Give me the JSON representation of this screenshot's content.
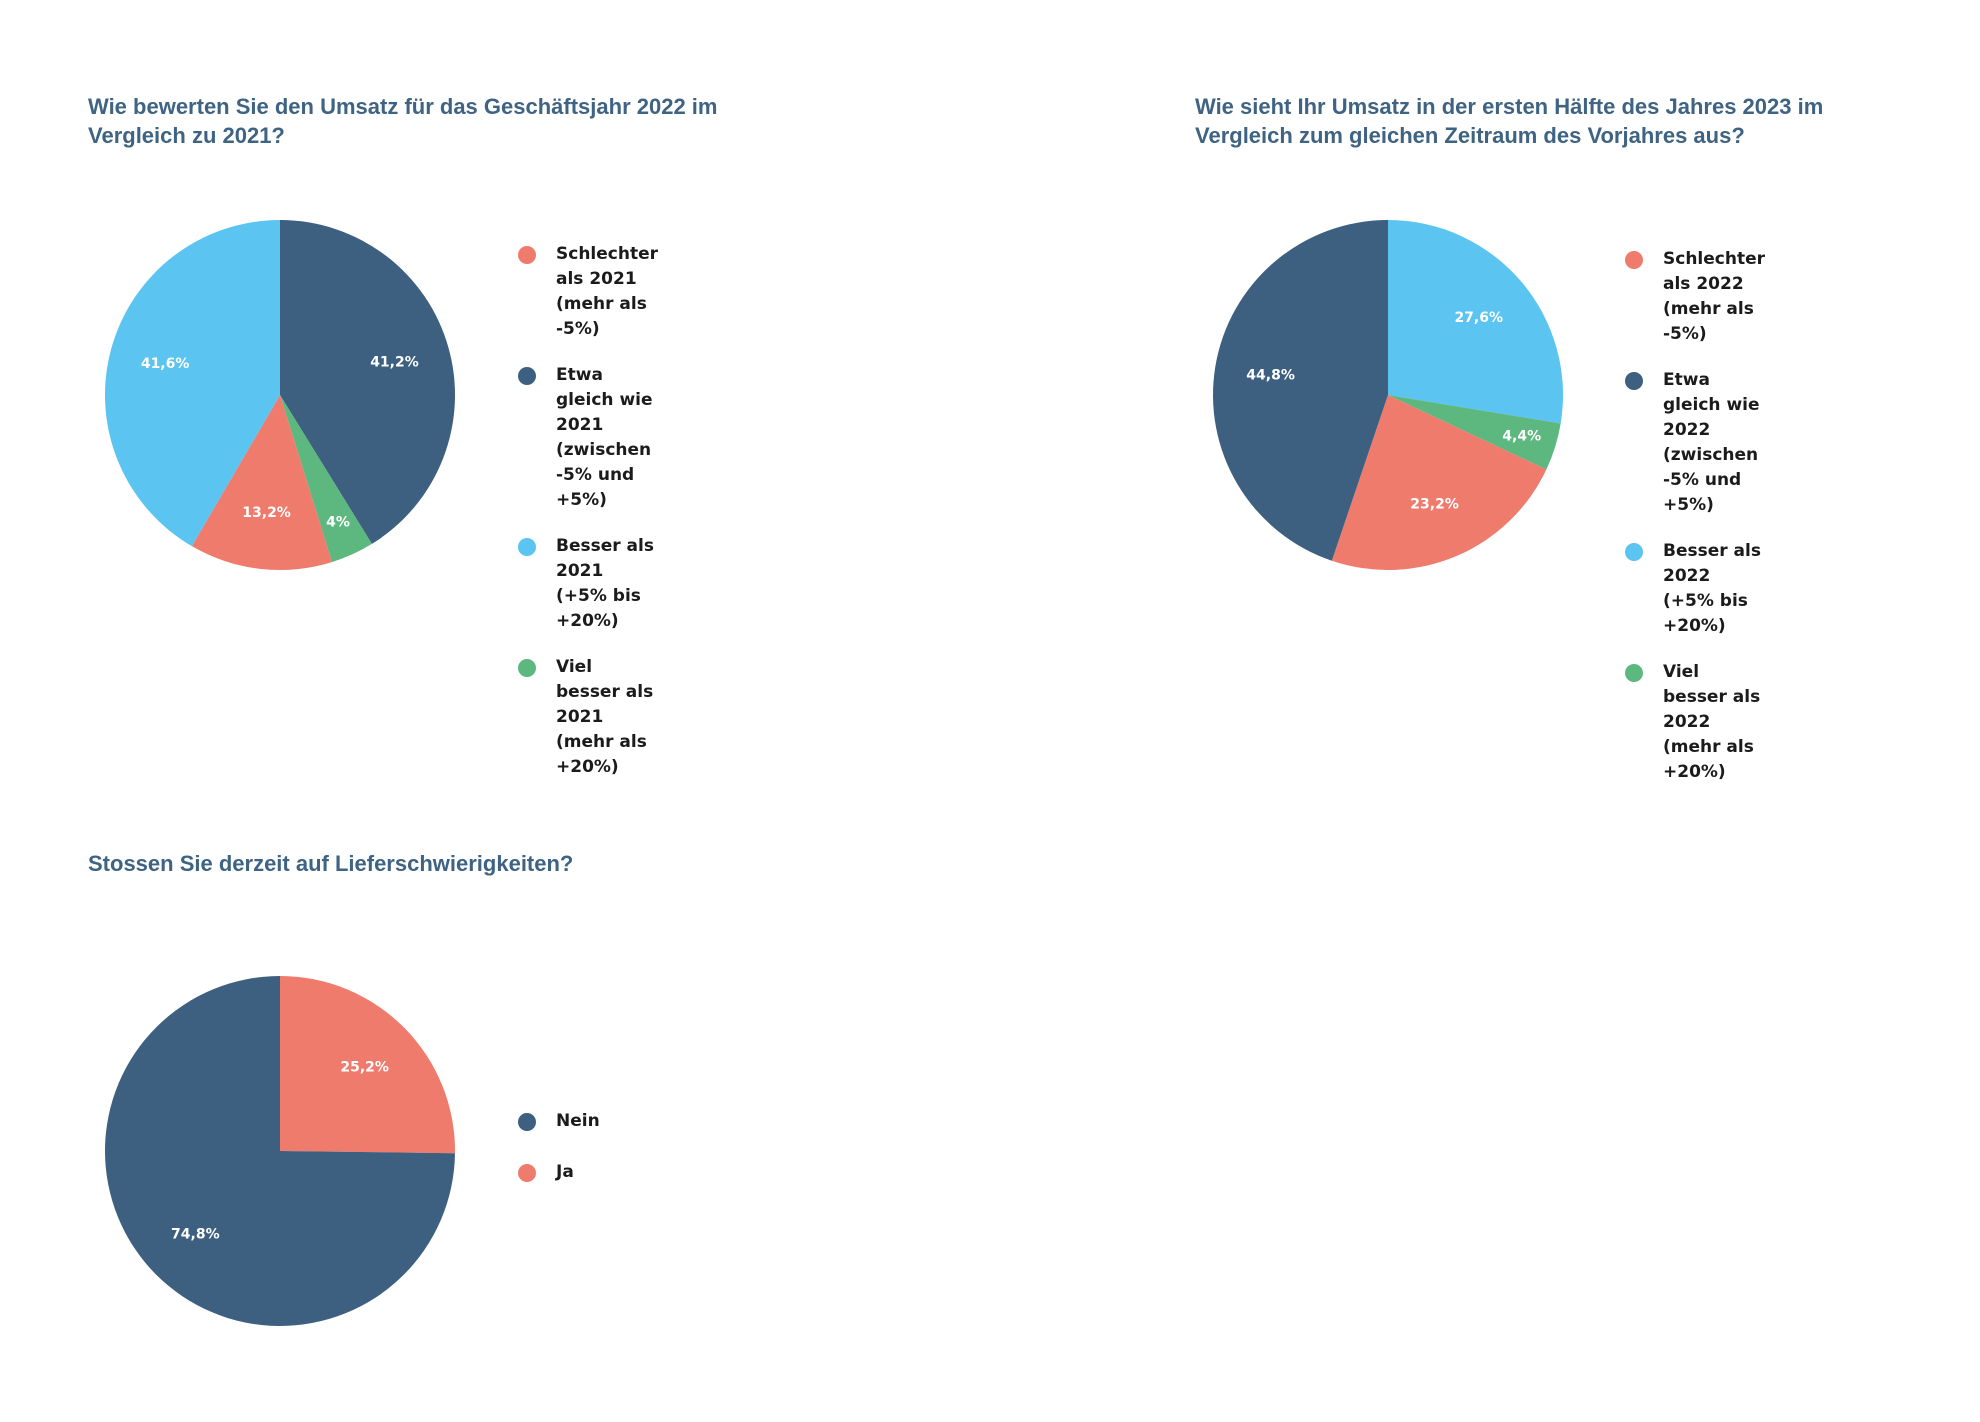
{
  "chart_data": [
    {
      "type": "pie",
      "title": "Wie bewerten Sie den Umsatz für das Geschäftsjahr 2022 im Vergleich zu 2021?",
      "slices": [
        {
          "label": "Schlechter als 2021\n(mehr als -5%)",
          "value": 13.2,
          "display": "13,2%",
          "color": "#ef7b6c"
        },
        {
          "label": "Etwa gleich wie 2021\n(zwischen -5% und +5%)",
          "value": 41.2,
          "display": "41,2%",
          "color": "#3d5f80"
        },
        {
          "label": "Besser als 2021\n(+5% bis +20%)",
          "value": 41.6,
          "display": "41,6%",
          "color": "#5bc4f0"
        },
        {
          "label": "Viel besser als 2021\n(mehr als +20%)",
          "value": 4.0,
          "display": "4%",
          "color": "#5db87f"
        }
      ],
      "draw_order": [
        1,
        3,
        0,
        2
      ],
      "legend_position": "right"
    },
    {
      "type": "pie",
      "title": "Wie sieht Ihr Umsatz in der ersten Hälfte des Jahres 2023 im Vergleich zum gleichen Zeitraum des Vorjahres aus?",
      "slices": [
        {
          "label": "Schlechter als 2022\n(mehr als -5%)",
          "value": 23.2,
          "display": "23,2%",
          "color": "#ef7b6c"
        },
        {
          "label": "Etwa gleich wie 2022\n(zwischen -5% und +5%)",
          "value": 44.8,
          "display": "44,8%",
          "color": "#3d5f80"
        },
        {
          "label": "Besser als 2022\n(+5% bis +20%)",
          "value": 27.6,
          "display": "27,6%",
          "color": "#5bc4f0"
        },
        {
          "label": "Viel besser als 2022\n(mehr als +20%)",
          "value": 4.4,
          "display": "4,4%",
          "color": "#5db87f"
        }
      ],
      "draw_order": [
        2,
        3,
        0,
        1
      ],
      "legend_position": "right"
    },
    {
      "type": "pie",
      "title": "Stossen Sie derzeit auf Lieferschwierigkeiten?",
      "slices": [
        {
          "label": "Nein",
          "value": 74.8,
          "display": "74,8%",
          "color": "#3d5f80"
        },
        {
          "label": "Ja",
          "value": 25.2,
          "display": "25,2%",
          "color": "#ef7b6c"
        }
      ],
      "draw_order": [
        1,
        0
      ],
      "legend_position": "right"
    }
  ]
}
